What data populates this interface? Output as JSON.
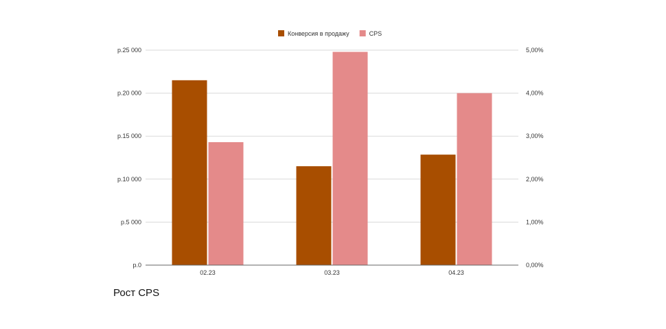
{
  "chart_data": {
    "type": "bar",
    "categories": [
      "02.23",
      "03.23",
      "04.23"
    ],
    "series": [
      {
        "name": "Конверсия в продажу",
        "axis": "right",
        "values": [
          4.3,
          2.3,
          2.57
        ],
        "color": "#a84e00"
      },
      {
        "name": "CPS",
        "axis": "left",
        "values": [
          14300,
          24800,
          20000
        ],
        "color": "#e48a8a"
      }
    ],
    "left_axis": {
      "ticks": [
        0,
        5000,
        10000,
        15000,
        20000,
        25000
      ],
      "tick_labels": [
        "р.0",
        "р.5 000",
        "р.10 000",
        "р.15 000",
        "р.20 000",
        "р.25 000"
      ],
      "ylim": [
        0,
        25000
      ]
    },
    "right_axis": {
      "ticks": [
        0,
        1,
        2,
        3,
        4,
        5
      ],
      "tick_labels": [
        "0,00%",
        "1,00%",
        "2,00%",
        "3,00%",
        "4,00%",
        "5,00%"
      ],
      "ylim": [
        0,
        5
      ]
    },
    "grid": true,
    "legend_position": "top-center",
    "title": "",
    "xlabel": "",
    "ylabel": ""
  },
  "caption": "Рост CPS"
}
